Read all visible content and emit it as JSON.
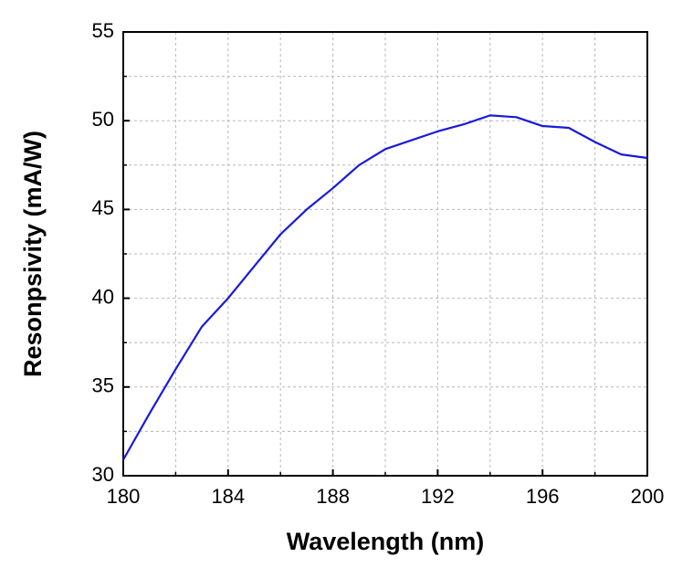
{
  "chart_data": {
    "type": "line",
    "x_label": "Wavelength (nm)",
    "y_label": "Resonpsivity (mA/W)",
    "x": [
      180,
      181,
      182,
      183,
      184,
      185,
      186,
      187,
      188,
      189,
      190,
      191,
      192,
      193,
      194,
      195,
      196,
      197,
      198,
      199,
      200
    ],
    "series": [
      {
        "color": "#1a1adc",
        "values": [
          30.9,
          33.5,
          36.0,
          38.4,
          40.0,
          41.8,
          43.6,
          45.0,
          46.2,
          47.5,
          48.4,
          48.9,
          49.4,
          49.8,
          50.3,
          50.2,
          49.7,
          49.6,
          48.8,
          48.1,
          47.9
        ]
      }
    ],
    "xlim": [
      180,
      200
    ],
    "xticks": [
      180,
      184,
      188,
      192,
      196,
      200
    ],
    "x_minor_ticks": [
      182,
      186,
      190,
      194,
      198
    ],
    "ylim": [
      30,
      55
    ],
    "yticks": [
      30,
      35,
      40,
      45,
      50,
      55
    ],
    "y_minor_ticks": [
      32.5,
      37.5,
      42.5,
      47.5,
      52.5
    ],
    "grid": true
  }
}
